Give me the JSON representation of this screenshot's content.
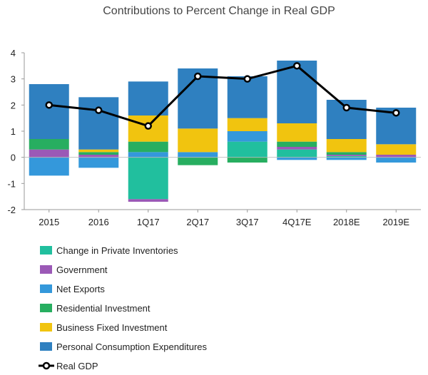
{
  "chart_data": {
    "type": "bar",
    "subtype": "stacked-bar-with-line",
    "title": "Contributions to Percent Change in Real GDP",
    "categories": [
      "2015",
      "2016",
      "1Q17",
      "2Q17",
      "3Q17",
      "4Q17E",
      "2018E",
      "2019E"
    ],
    "ylim": [
      -2,
      4
    ],
    "yticks": [
      "4",
      "3",
      "2",
      "1",
      "0",
      "-1",
      "-2"
    ],
    "ytick_values": [
      4,
      3,
      2,
      1,
      0,
      -1,
      -2
    ],
    "series": [
      {
        "name": "Change in Private Inventories",
        "color": "#21bf9e",
        "values": [
          0.0,
          0.0,
          -1.6,
          0.0,
          0.6,
          0.3,
          0.05,
          0.0
        ]
      },
      {
        "name": "Government",
        "color": "#9b59b6",
        "values": [
          0.3,
          0.1,
          -0.1,
          0.0,
          0.0,
          0.1,
          0.05,
          0.1
        ]
      },
      {
        "name": "Net Exports",
        "color": "#3498db",
        "values": [
          -0.7,
          -0.4,
          0.2,
          0.2,
          0.4,
          -0.1,
          -0.1,
          -0.2
        ]
      },
      {
        "name": "Residential Investment",
        "color": "#27ae60",
        "values": [
          0.4,
          0.1,
          0.4,
          -0.3,
          -0.2,
          0.2,
          0.1,
          0.0
        ]
      },
      {
        "name": "Business Fixed Investment",
        "color": "#f1c40f",
        "values": [
          0.0,
          0.1,
          1.0,
          0.9,
          0.5,
          0.7,
          0.5,
          0.4
        ]
      },
      {
        "name": "Personal Consumption Expenditures",
        "color": "#2f80c0",
        "values": [
          2.1,
          2.0,
          1.3,
          2.3,
          1.6,
          2.4,
          1.5,
          1.4
        ]
      }
    ],
    "line_series": {
      "name": "Real GDP",
      "color": "#000000",
      "values": [
        2.0,
        1.8,
        1.2,
        3.1,
        3.0,
        3.5,
        1.9,
        1.7
      ]
    },
    "legend_position": "bottom-left"
  }
}
